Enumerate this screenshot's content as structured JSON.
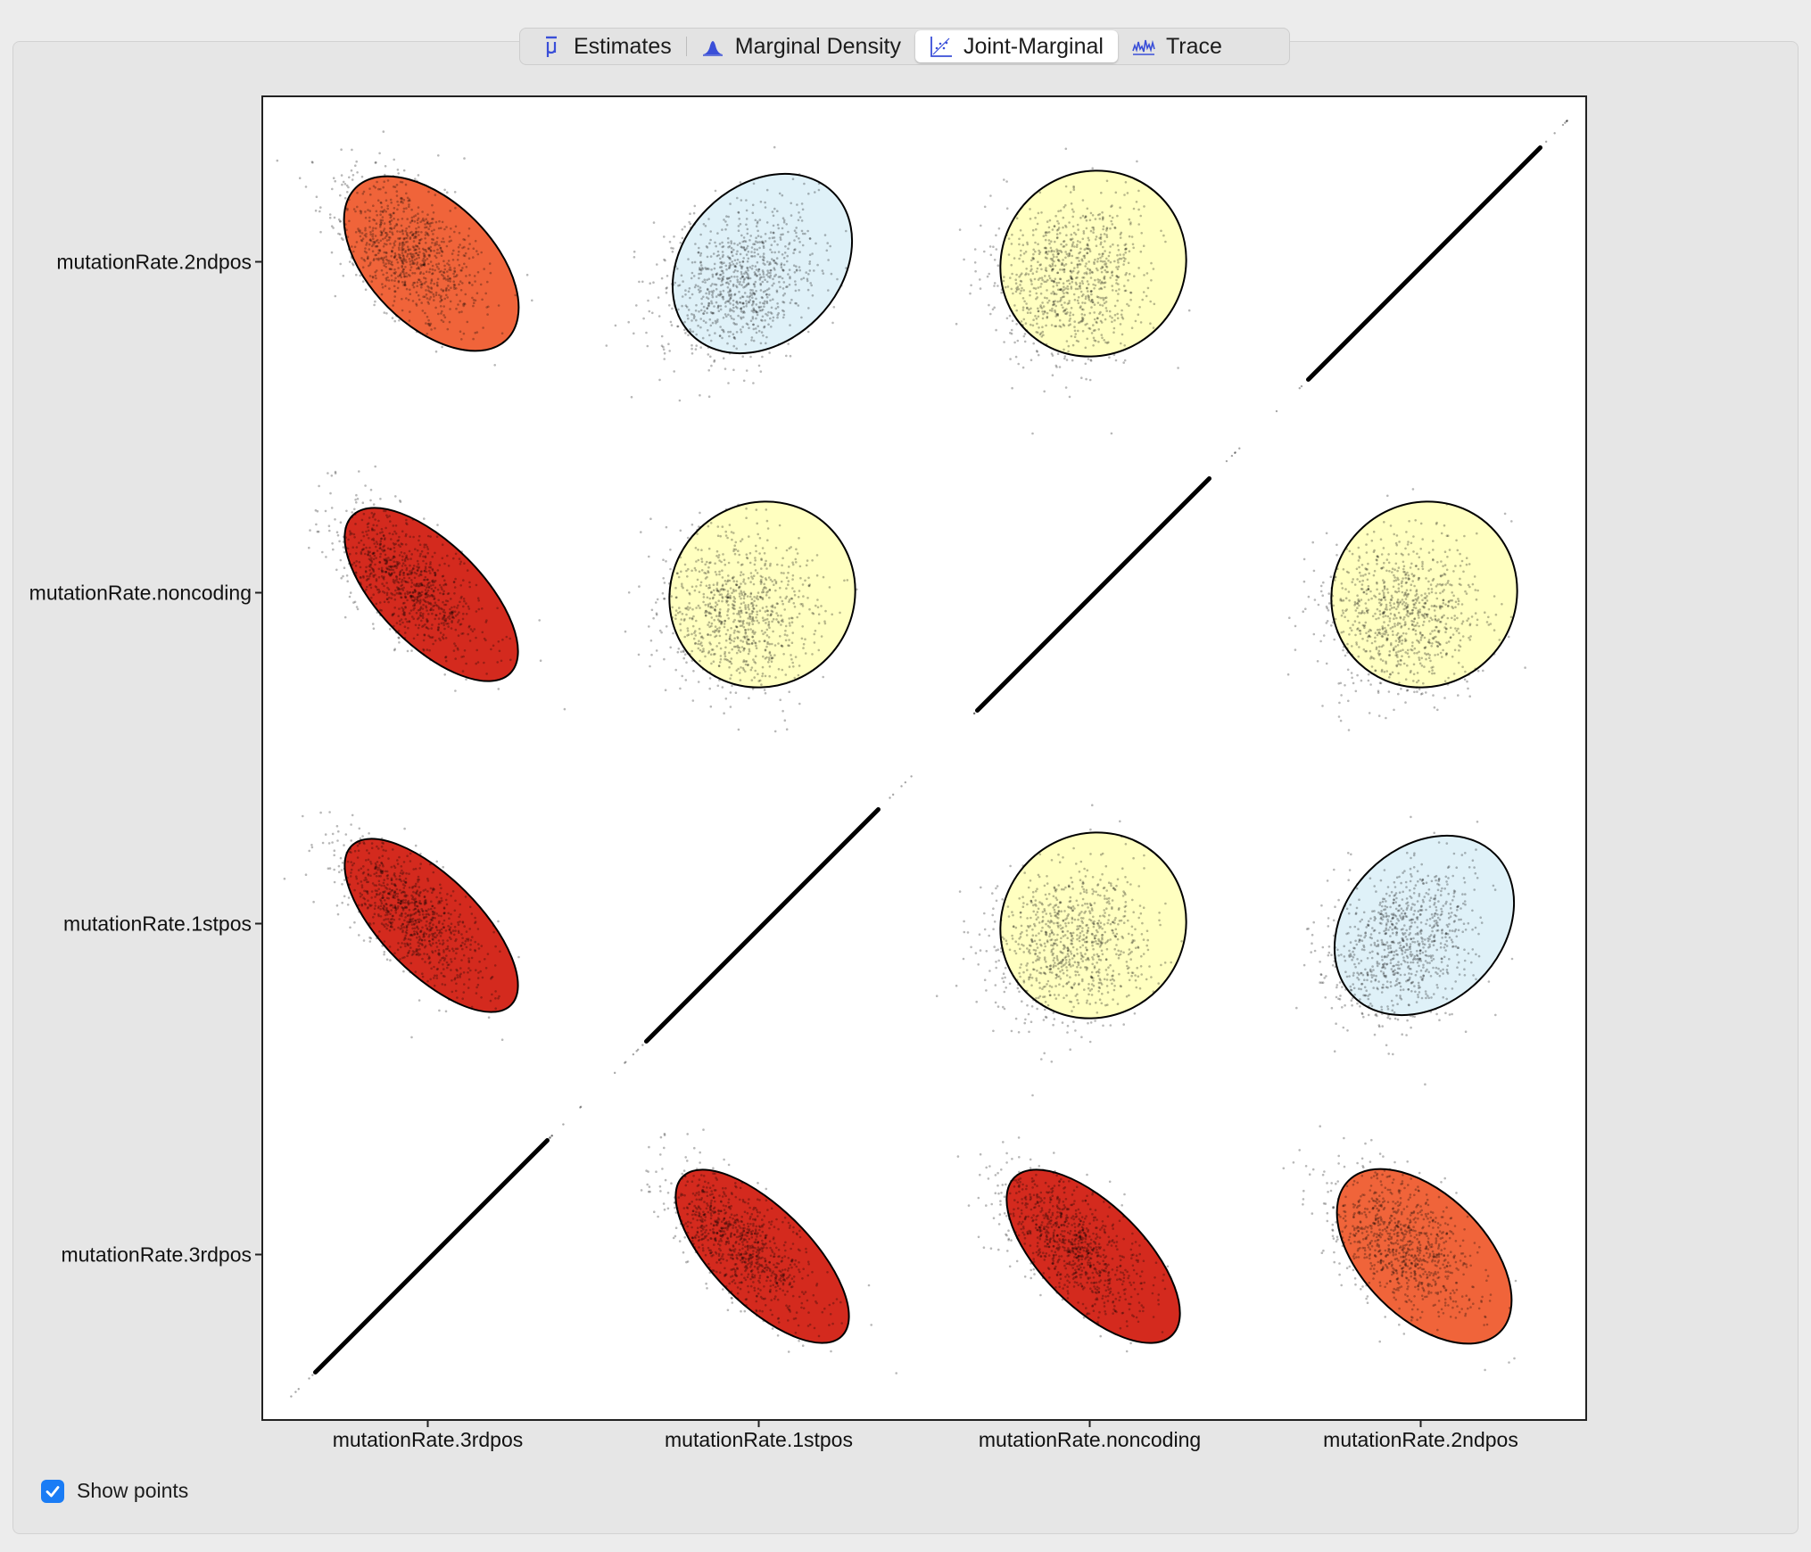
{
  "tabs": [
    {
      "label": "Estimates",
      "icon": "mu-estimates-icon",
      "active": false
    },
    {
      "label": "Marginal Density",
      "icon": "density-peak-icon",
      "active": false
    },
    {
      "label": "Joint-Marginal",
      "icon": "joint-marginal-icon",
      "active": true
    },
    {
      "label": "Trace",
      "icon": "trace-icon",
      "active": false
    }
  ],
  "options": {
    "show_points_label": "Show points",
    "show_points_checked": true
  },
  "colors": {
    "accent": "#1a7cf5",
    "icon_blue": "#3a4fd8",
    "strong_negative": "#d42a1e",
    "moderate_negative": "#f0643a",
    "weak_positive": "#dff1f8",
    "near_zero": "#ffffc0"
  },
  "chart_data": {
    "type": "scatter",
    "title": "",
    "xlabel": "",
    "ylabel": "",
    "grid": false,
    "x_labels": [
      "mutationRate.3rdpos",
      "mutationRate.1stpos",
      "mutationRate.noncoding",
      "mutationRate.2ndpos"
    ],
    "y_labels": [
      "mutationRate.2ndpos",
      "mutationRate.noncoding",
      "mutationRate.1stpos",
      "mutationRate.3rdpos"
    ],
    "cells": [
      {
        "row": 0,
        "col": 0,
        "kind": "ellipse",
        "fill": "#f0643a",
        "correlation": -0.6
      },
      {
        "row": 0,
        "col": 1,
        "kind": "ellipse",
        "fill": "#dff1f8",
        "correlation": 0.3
      },
      {
        "row": 0,
        "col": 2,
        "kind": "ellipse",
        "fill": "#ffffc0",
        "correlation": 0.05
      },
      {
        "row": 0,
        "col": 3,
        "kind": "diagonal",
        "fill": "#000000",
        "correlation": 1.0
      },
      {
        "row": 1,
        "col": 0,
        "kind": "ellipse",
        "fill": "#d42a1e",
        "correlation": -0.8
      },
      {
        "row": 1,
        "col": 1,
        "kind": "ellipse",
        "fill": "#ffffc0",
        "correlation": 0.05
      },
      {
        "row": 1,
        "col": 2,
        "kind": "diagonal",
        "fill": "#000000",
        "correlation": 1.0
      },
      {
        "row": 1,
        "col": 3,
        "kind": "ellipse",
        "fill": "#ffffc0",
        "correlation": 0.05
      },
      {
        "row": 2,
        "col": 0,
        "kind": "ellipse",
        "fill": "#d42a1e",
        "correlation": -0.85
      },
      {
        "row": 2,
        "col": 1,
        "kind": "diagonal",
        "fill": "#000000",
        "correlation": 1.0
      },
      {
        "row": 2,
        "col": 2,
        "kind": "ellipse",
        "fill": "#ffffc0",
        "correlation": 0.05
      },
      {
        "row": 2,
        "col": 3,
        "kind": "ellipse",
        "fill": "#dff1f8",
        "correlation": 0.3
      },
      {
        "row": 3,
        "col": 0,
        "kind": "diagonal",
        "fill": "#000000",
        "correlation": 1.0
      },
      {
        "row": 3,
        "col": 1,
        "kind": "ellipse",
        "fill": "#d42a1e",
        "correlation": -0.85
      },
      {
        "row": 3,
        "col": 2,
        "kind": "ellipse",
        "fill": "#d42a1e",
        "correlation": -0.8
      },
      {
        "row": 3,
        "col": 3,
        "kind": "ellipse",
        "fill": "#f0643a",
        "correlation": -0.6
      }
    ]
  }
}
